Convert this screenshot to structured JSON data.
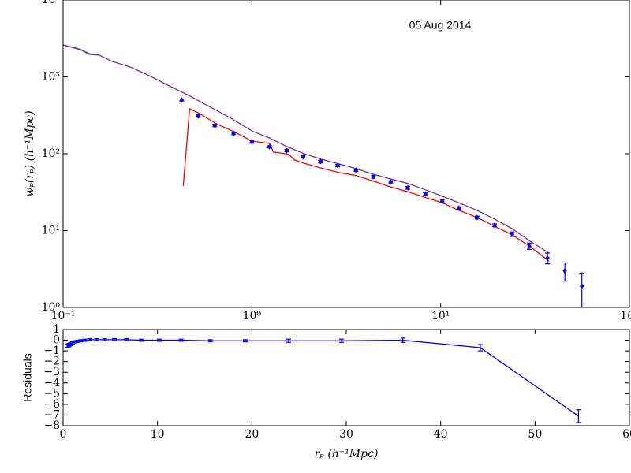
{
  "chart_data": [
    {
      "type": "line",
      "annotation": "05 Aug 2014",
      "ylabel": "wₚ(rₚ) (h⁻¹Mpc)",
      "xscale": "log",
      "yscale": "log",
      "xlim": [
        0.1,
        100
      ],
      "ylim": [
        1,
        10000
      ],
      "xticks": [
        {
          "value": 0.1,
          "label": "10⁻¹"
        },
        {
          "value": 1,
          "label": "10⁰"
        },
        {
          "value": 10,
          "label": "10¹"
        },
        {
          "value": 100,
          "label": "10²"
        }
      ],
      "yticks": [
        {
          "value": 1,
          "label": "10⁰"
        },
        {
          "value": 10,
          "label": "10¹"
        },
        {
          "value": 100,
          "label": "10²"
        },
        {
          "value": 1000,
          "label": "10³"
        },
        {
          "value": 10000,
          "label": "10⁴"
        }
      ],
      "series": [
        {
          "color": "#2e8b57",
          "line": true,
          "marker": "none",
          "x": [
            0.1,
            0.123,
            0.138,
            0.156
          ],
          "values": [
            2600,
            2300,
            2000,
            1950
          ]
        },
        {
          "color": "#8b2a9e",
          "line": true,
          "marker": "none",
          "x": [
            0.1,
            0.123,
            0.138,
            0.156,
            0.182,
            0.227,
            0.292,
            0.365,
            0.463,
            0.583,
            0.764,
            1.0,
            1.24,
            1.53,
            1.89,
            2.33,
            2.88,
            3.56,
            4.4,
            5.43,
            6.71,
            8.29,
            10.2,
            12.5,
            15.6,
            19.3,
            23.9,
            29.5,
            37.5
          ],
          "values": [
            2600,
            2260,
            1960,
            1915,
            1585,
            1343,
            1012,
            762,
            574,
            422,
            296,
            198,
            160,
            124,
            100,
            85,
            74,
            64,
            54,
            47,
            41,
            34,
            28,
            23,
            18.3,
            14.1,
            10.6,
            7.4,
            5.1
          ]
        },
        {
          "color": "#ff0000",
          "line": true,
          "marker": "none",
          "x": [
            0.433,
            0.468,
            0.52,
            0.649,
            0.801,
            1.0,
            1.24,
            1.3,
            1.43,
            1.57,
            1.68,
            1.89,
            2.33,
            2.88,
            3.56,
            4.4,
            5.43,
            6.71,
            8.29,
            10.2,
            12.5,
            15.6,
            19.3,
            23.9,
            29.5,
            37.5
          ],
          "values": [
            38,
            384,
            341,
            245,
            194,
            146,
            136,
            105,
            102,
            98,
            83,
            75,
            65,
            57,
            52,
            44,
            37,
            32,
            27,
            23,
            18.3,
            14.8,
            11.4,
            8.8,
            6.3,
            4.0
          ]
        },
        {
          "color": "#0000ff",
          "line": false,
          "marker": "diamond",
          "x": [
            0.425,
            0.52,
            0.636,
            0.8,
            1.0,
            1.24,
            1.53,
            1.87,
            2.31,
            2.85,
            3.56,
            4.4,
            5.44,
            6.7,
            8.3,
            10.2,
            12.5,
            15.6,
            19.3,
            23.9,
            29.5,
            36.8,
            45.5,
            56
          ],
          "values": [
            500,
            310,
            233,
            184,
            142,
            123,
            110,
            91,
            79,
            70,
            61,
            50,
            43,
            36,
            30,
            24,
            19.6,
            14.8,
            11.7,
            9.0,
            6.3,
            4.4,
            3.0,
            1.9
          ],
          "errors": [
            15,
            12,
            9,
            7,
            5,
            4,
            4,
            3,
            3,
            2.5,
            2,
            2,
            1.5,
            1.5,
            1.2,
            1,
            0.8,
            0.6,
            0.5,
            0.6,
            0.6,
            0.7,
            0.8,
            0.9
          ]
        }
      ]
    },
    {
      "type": "line",
      "xlabel": "rₚ (h⁻¹Mpc)",
      "ylabel": "Residuals",
      "xscale": "linear",
      "yscale": "linear",
      "xlim": [
        0,
        60
      ],
      "ylim": [
        -8,
        1
      ],
      "xticks": [
        0,
        10,
        20,
        30,
        40,
        50,
        60
      ],
      "yticks": [
        1,
        0,
        {
          "value": -1,
          "label": "−1"
        },
        {
          "value": -2,
          "label": "−2"
        },
        {
          "value": -3,
          "label": "−3"
        },
        {
          "value": -4,
          "label": "−4"
        },
        {
          "value": -5,
          "label": "−5"
        },
        {
          "value": -6,
          "label": "−6"
        },
        {
          "value": -7,
          "label": "−7"
        },
        {
          "value": -8,
          "label": "−8"
        }
      ],
      "series": [
        {
          "color": "#0000ff",
          "line": true,
          "marker": "none",
          "x": [
            0.43,
            0.52,
            0.64,
            0.8,
            1.0,
            1.24,
            1.53,
            1.87,
            2.31,
            2.85,
            3.56,
            4.4,
            5.44,
            6.7,
            8.3,
            10.2,
            12.5,
            15.6,
            19.3,
            23.9,
            29.5,
            36.0,
            44.2,
            54.6
          ],
          "values": [
            -0.55,
            -0.5,
            -0.45,
            -0.35,
            -0.25,
            -0.15,
            -0.1,
            -0.05,
            0,
            0.05,
            0.05,
            0.05,
            0.05,
            0.05,
            0,
            0,
            0,
            -0.05,
            -0.05,
            -0.05,
            -0.05,
            0,
            -0.7,
            -7.1
          ],
          "errors": [
            0.15,
            0.15,
            0.15,
            0.15,
            0.1,
            0.1,
            0.1,
            0.1,
            0.1,
            0.1,
            0.1,
            0.1,
            0.1,
            0.1,
            0.1,
            0.1,
            0.1,
            0.1,
            0.1,
            0.15,
            0.15,
            0.2,
            0.3,
            0.6
          ]
        }
      ]
    }
  ]
}
